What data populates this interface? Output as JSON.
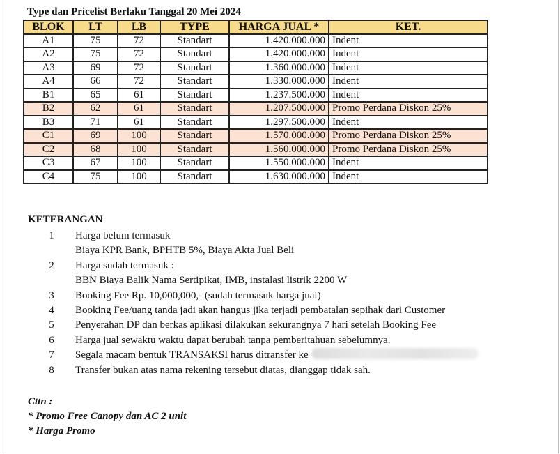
{
  "title": "Type dan Pricelist Berlaku Tanggal 20 Mei 2024",
  "colors": {
    "header_bg": "#f7da8a",
    "promo_row_bg": "#fbe2d3"
  },
  "table": {
    "headers": [
      "BLOK",
      "LT",
      "LB",
      "TYPE",
      "HARGA JUAL *",
      "KET."
    ],
    "rows": [
      {
        "blok": "A1",
        "lt": "75",
        "lb": "72",
        "type": "Standart",
        "harga": "1.420.000.000",
        "ket": "Indent",
        "promo": false
      },
      {
        "blok": "A2",
        "lt": "75",
        "lb": "72",
        "type": "Standart",
        "harga": "1.420.000.000",
        "ket": "Indent",
        "promo": false
      },
      {
        "blok": "A3",
        "lt": "69",
        "lb": "72",
        "type": "Standart",
        "harga": "1.360.000.000",
        "ket": "Indent",
        "promo": false
      },
      {
        "blok": "A4",
        "lt": "66",
        "lb": "72",
        "type": "Standart",
        "harga": "1.330.000.000",
        "ket": "Indent",
        "promo": false
      },
      {
        "blok": "B1",
        "lt": "65",
        "lb": "61",
        "type": "Standart",
        "harga": "1.237.500.000",
        "ket": "Indent",
        "promo": false
      },
      {
        "blok": "B2",
        "lt": "62",
        "lb": "61",
        "type": "Standart",
        "harga": "1.207.500.000",
        "ket": "Promo Perdana Diskon 25%",
        "promo": true
      },
      {
        "blok": "B3",
        "lt": "71",
        "lb": "61",
        "type": "Standart",
        "harga": "1.297.500.000",
        "ket": "Indent",
        "promo": false
      },
      {
        "blok": "C1",
        "lt": "69",
        "lb": "100",
        "type": "Standart",
        "harga": "1.570.000.000",
        "ket": "Promo Perdana Diskon 25%",
        "promo": true
      },
      {
        "blok": "C2",
        "lt": "68",
        "lb": "100",
        "type": "Standart",
        "harga": "1.560.000.000",
        "ket": "Promo Perdana Diskon 25%",
        "promo": true
      },
      {
        "blok": "C3",
        "lt": "67",
        "lb": "100",
        "type": "Standart",
        "harga": "1.550.000.000",
        "ket": "Indent",
        "promo": false
      },
      {
        "blok": "C4",
        "lt": "75",
        "lb": "100",
        "type": "Standart",
        "harga": "1.630.000.000",
        "ket": "Indent",
        "promo": false
      }
    ]
  },
  "keterangan": {
    "heading": "KETERANGAN",
    "items": [
      {
        "num": "1",
        "text": "Harga belum termasuk"
      },
      {
        "num": "",
        "text": "Biaya KPR Bank, BPHTB 5%, Biaya Akta Jual Beli"
      },
      {
        "num": "2",
        "text": "Harga sudah termasuk :"
      },
      {
        "num": "",
        "text": "BBN Biaya Balik Nama Sertipikat, IMB, instalasi listrik 2200 W"
      },
      {
        "num": "3",
        "text": "Booking Fee Rp. 10,000,000,- (sudah termasuk harga jual)"
      },
      {
        "num": "4",
        "text": "Booking Fee/uang tanda jadi akan hangus jika terjadi pembatalan sepihak dari Customer"
      },
      {
        "num": "5",
        "text": "Penyerahan DP dan berkas aplikasi dilakukan sekurangnya 7 hari setelah Booking Fee"
      },
      {
        "num": "6",
        "text": "Harga jual sewaktu waktu dapat berubah tanpa pemberitahuan sebelumnya."
      },
      {
        "num": "7",
        "text": "Segala macam bentuk TRANSAKSI harus ditransfer ke",
        "redacted": true
      },
      {
        "num": "8",
        "text": "Transfer bukan atas nama rekening tersebut diatas, dianggap tidak sah."
      }
    ]
  },
  "catatan": {
    "heading": "Cttn :",
    "items": [
      "* Promo Free Canopy dan AC 2 unit",
      "* Harga Promo"
    ]
  }
}
